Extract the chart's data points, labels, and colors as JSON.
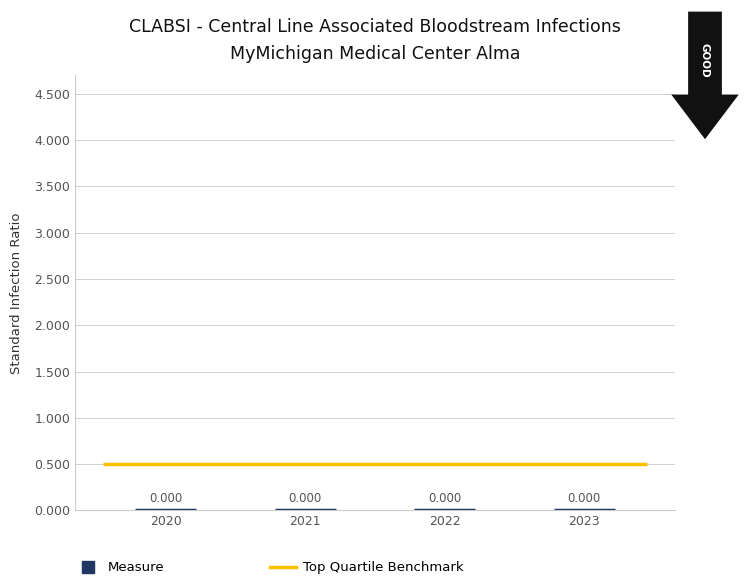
{
  "title_line1": "CLABSI - Central Line Associated Bloodstream Infections",
  "title_line2": "MyMichigan Medical Center Alma",
  "years": [
    2020,
    2021,
    2022,
    2023
  ],
  "measure_values": [
    0.0,
    0.0,
    0.0,
    0.0
  ],
  "benchmark_value": 0.5,
  "ylabel": "Standard Infection Ratio",
  "ylim": [
    0.0,
    4.7
  ],
  "yticks": [
    0.0,
    0.5,
    1.0,
    1.5,
    2.0,
    2.5,
    3.0,
    3.5,
    4.0,
    4.5
  ],
  "ytick_labels": [
    "0.000",
    "0.500",
    "1.000",
    "1.500",
    "2.000",
    "2.500",
    "3.000",
    "3.500",
    "4.000",
    "4.500"
  ],
  "measure_color": "#1F3864",
  "benchmark_color": "#FFC000",
  "background_color": "#FFFFFF",
  "plot_bg_color": "#FFFFFF",
  "grid_color": "#D0D0D0",
  "title_fontsize": 12.5,
  "label_fontsize": 9.5,
  "tick_fontsize": 9,
  "annotation_fontsize": 8.5,
  "good_arrow_color": "#111111",
  "good_text_color": "#FFFFFF",
  "legend_measure_label": "Measure",
  "legend_benchmark_label": "Top Quartile Benchmark"
}
